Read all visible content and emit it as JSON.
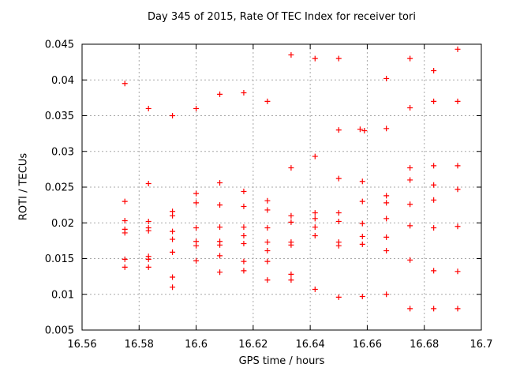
{
  "chart_data": {
    "type": "scatter",
    "title": "Day 345 of 2015, Rate Of TEC Index for receiver tori",
    "xlabel": "GPS time / hours",
    "ylabel": "ROTI / TECUs",
    "xlim": [
      16.56,
      16.7
    ],
    "ylim": [
      0.005,
      0.045
    ],
    "grid": true,
    "legend_position": "none",
    "xticks": {
      "values": [
        16.56,
        16.58,
        16.6,
        16.62,
        16.64,
        16.66,
        16.68,
        16.7
      ],
      "labels": [
        "16.56",
        "16.58",
        "16.6",
        "16.62",
        "16.64",
        "16.66",
        "16.68",
        "16.7"
      ]
    },
    "yticks": {
      "values": [
        0.005,
        0.01,
        0.015,
        0.02,
        0.025,
        0.03,
        0.035,
        0.04,
        0.045
      ],
      "labels": [
        "0.005",
        "0.01",
        "0.015",
        "0.02",
        "0.025",
        "0.03",
        "0.035",
        "0.04",
        "0.045"
      ]
    },
    "marker": {
      "shape": "plus",
      "size": 7,
      "color": "#ff0000"
    },
    "series": [
      {
        "name": "ROTI",
        "points": [
          [
            16.575,
            0.0395
          ],
          [
            16.575,
            0.023
          ],
          [
            16.575,
            0.0203
          ],
          [
            16.575,
            0.0191
          ],
          [
            16.575,
            0.0186
          ],
          [
            16.575,
            0.0149
          ],
          [
            16.575,
            0.0138
          ],
          [
            16.5833,
            0.036
          ],
          [
            16.5833,
            0.0255
          ],
          [
            16.5833,
            0.0202
          ],
          [
            16.5833,
            0.0193
          ],
          [
            16.5833,
            0.0189
          ],
          [
            16.5833,
            0.0153
          ],
          [
            16.5833,
            0.0149
          ],
          [
            16.5833,
            0.0138
          ],
          [
            16.5917,
            0.035
          ],
          [
            16.5917,
            0.0216
          ],
          [
            16.5917,
            0.021
          ],
          [
            16.5917,
            0.0188
          ],
          [
            16.5917,
            0.0177
          ],
          [
            16.5917,
            0.0159
          ],
          [
            16.5917,
            0.0124
          ],
          [
            16.5917,
            0.011
          ],
          [
            16.6,
            0.036
          ],
          [
            16.6,
            0.0241
          ],
          [
            16.6,
            0.0228
          ],
          [
            16.6,
            0.0193
          ],
          [
            16.6,
            0.0174
          ],
          [
            16.6,
            0.0168
          ],
          [
            16.6,
            0.0147
          ],
          [
            16.6083,
            0.038
          ],
          [
            16.6083,
            0.0256
          ],
          [
            16.6083,
            0.0225
          ],
          [
            16.6083,
            0.0194
          ],
          [
            16.6083,
            0.0174
          ],
          [
            16.6083,
            0.0169
          ],
          [
            16.6083,
            0.0154
          ],
          [
            16.6083,
            0.0131
          ],
          [
            16.6167,
            0.0382
          ],
          [
            16.6167,
            0.0244
          ],
          [
            16.6167,
            0.0223
          ],
          [
            16.6167,
            0.0194
          ],
          [
            16.6167,
            0.0182
          ],
          [
            16.6167,
            0.0171
          ],
          [
            16.6167,
            0.0146
          ],
          [
            16.6167,
            0.0133
          ],
          [
            16.625,
            0.037
          ],
          [
            16.625,
            0.0231
          ],
          [
            16.625,
            0.0218
          ],
          [
            16.625,
            0.0193
          ],
          [
            16.625,
            0.0173
          ],
          [
            16.625,
            0.0161
          ],
          [
            16.625,
            0.0146
          ],
          [
            16.625,
            0.012
          ],
          [
            16.6333,
            0.0435
          ],
          [
            16.6333,
            0.0277
          ],
          [
            16.6333,
            0.021
          ],
          [
            16.6333,
            0.0201
          ],
          [
            16.6333,
            0.0173
          ],
          [
            16.6333,
            0.0169
          ],
          [
            16.6333,
            0.0128
          ],
          [
            16.6333,
            0.012
          ],
          [
            16.6417,
            0.043
          ],
          [
            16.6417,
            0.0293
          ],
          [
            16.6417,
            0.0214
          ],
          [
            16.6417,
            0.0206
          ],
          [
            16.6417,
            0.0194
          ],
          [
            16.6417,
            0.0182
          ],
          [
            16.6417,
            0.0107
          ],
          [
            16.65,
            0.043
          ],
          [
            16.65,
            0.033
          ],
          [
            16.65,
            0.0262
          ],
          [
            16.65,
            0.0214
          ],
          [
            16.65,
            0.0202
          ],
          [
            16.65,
            0.0173
          ],
          [
            16.65,
            0.0168
          ],
          [
            16.65,
            0.0096
          ],
          [
            16.6575,
            0.0331
          ],
          [
            16.659,
            0.0329
          ],
          [
            16.6583,
            0.0258
          ],
          [
            16.6583,
            0.023
          ],
          [
            16.6583,
            0.0199
          ],
          [
            16.6583,
            0.0181
          ],
          [
            16.6583,
            0.017
          ],
          [
            16.6583,
            0.0097
          ],
          [
            16.6667,
            0.0402
          ],
          [
            16.6667,
            0.0332
          ],
          [
            16.6667,
            0.0238
          ],
          [
            16.6667,
            0.0228
          ],
          [
            16.6667,
            0.0206
          ],
          [
            16.6667,
            0.018
          ],
          [
            16.6667,
            0.0161
          ],
          [
            16.6667,
            0.01
          ],
          [
            16.675,
            0.043
          ],
          [
            16.675,
            0.0361
          ],
          [
            16.675,
            0.0277
          ],
          [
            16.675,
            0.026
          ],
          [
            16.675,
            0.0226
          ],
          [
            16.675,
            0.0196
          ],
          [
            16.675,
            0.0148
          ],
          [
            16.675,
            0.008
          ],
          [
            16.6833,
            0.0413
          ],
          [
            16.6833,
            0.037
          ],
          [
            16.6833,
            0.028
          ],
          [
            16.6833,
            0.0253
          ],
          [
            16.6833,
            0.0232
          ],
          [
            16.6833,
            0.0193
          ],
          [
            16.6833,
            0.0133
          ],
          [
            16.6833,
            0.008
          ],
          [
            16.6917,
            0.0443
          ],
          [
            16.6917,
            0.037
          ],
          [
            16.6917,
            0.028
          ],
          [
            16.6917,
            0.0247
          ],
          [
            16.6917,
            0.0195
          ],
          [
            16.6917,
            0.0132
          ],
          [
            16.6917,
            0.008
          ]
        ]
      }
    ]
  },
  "colors": {
    "background": "#ffffff",
    "axis": "#000000",
    "grid": "#a8a8a8",
    "marker": "#ff0000",
    "text": "#000000"
  }
}
